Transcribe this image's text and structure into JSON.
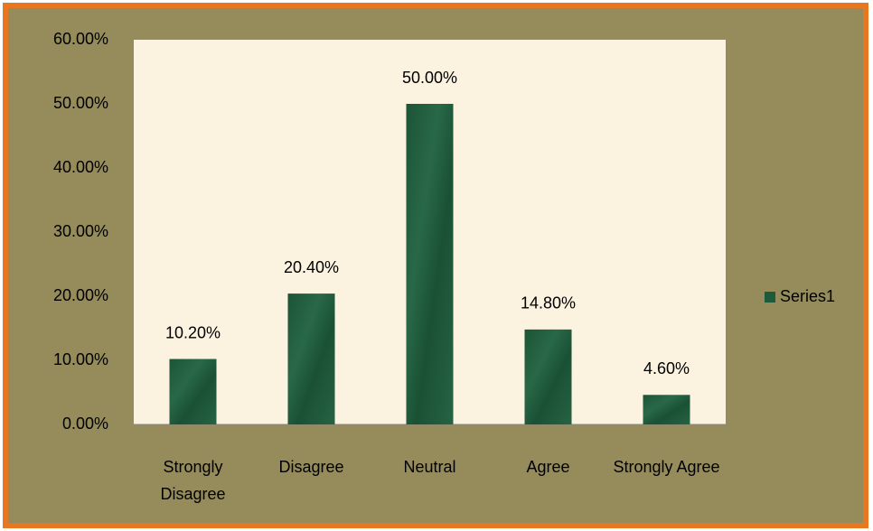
{
  "chart_data": {
    "type": "bar",
    "categories": [
      "Strongly Disagree",
      "Disagree",
      "Neutral",
      "Agree",
      "Strongly Agree"
    ],
    "series": [
      {
        "name": "Series1",
        "color": "#1f5b3b",
        "values": [
          10.2,
          20.4,
          50,
          14.8,
          4.6
        ],
        "value_labels": [
          "10.20%",
          "20.40%",
          "50.00%",
          "14.80%",
          "4.60%"
        ]
      }
    ],
    "ylim": [
      0,
      60
    ],
    "yticks": [
      {
        "value": 0,
        "label": "0.00%"
      },
      {
        "value": 10,
        "label": "10.00%"
      },
      {
        "value": 20,
        "label": "20.00%"
      },
      {
        "value": 30,
        "label": "30.00%"
      },
      {
        "value": 40,
        "label": "40.00%"
      },
      {
        "value": 50,
        "label": "50.00%"
      },
      {
        "value": 60,
        "label": "60.00%"
      }
    ],
    "grid": false,
    "legend": "right"
  }
}
